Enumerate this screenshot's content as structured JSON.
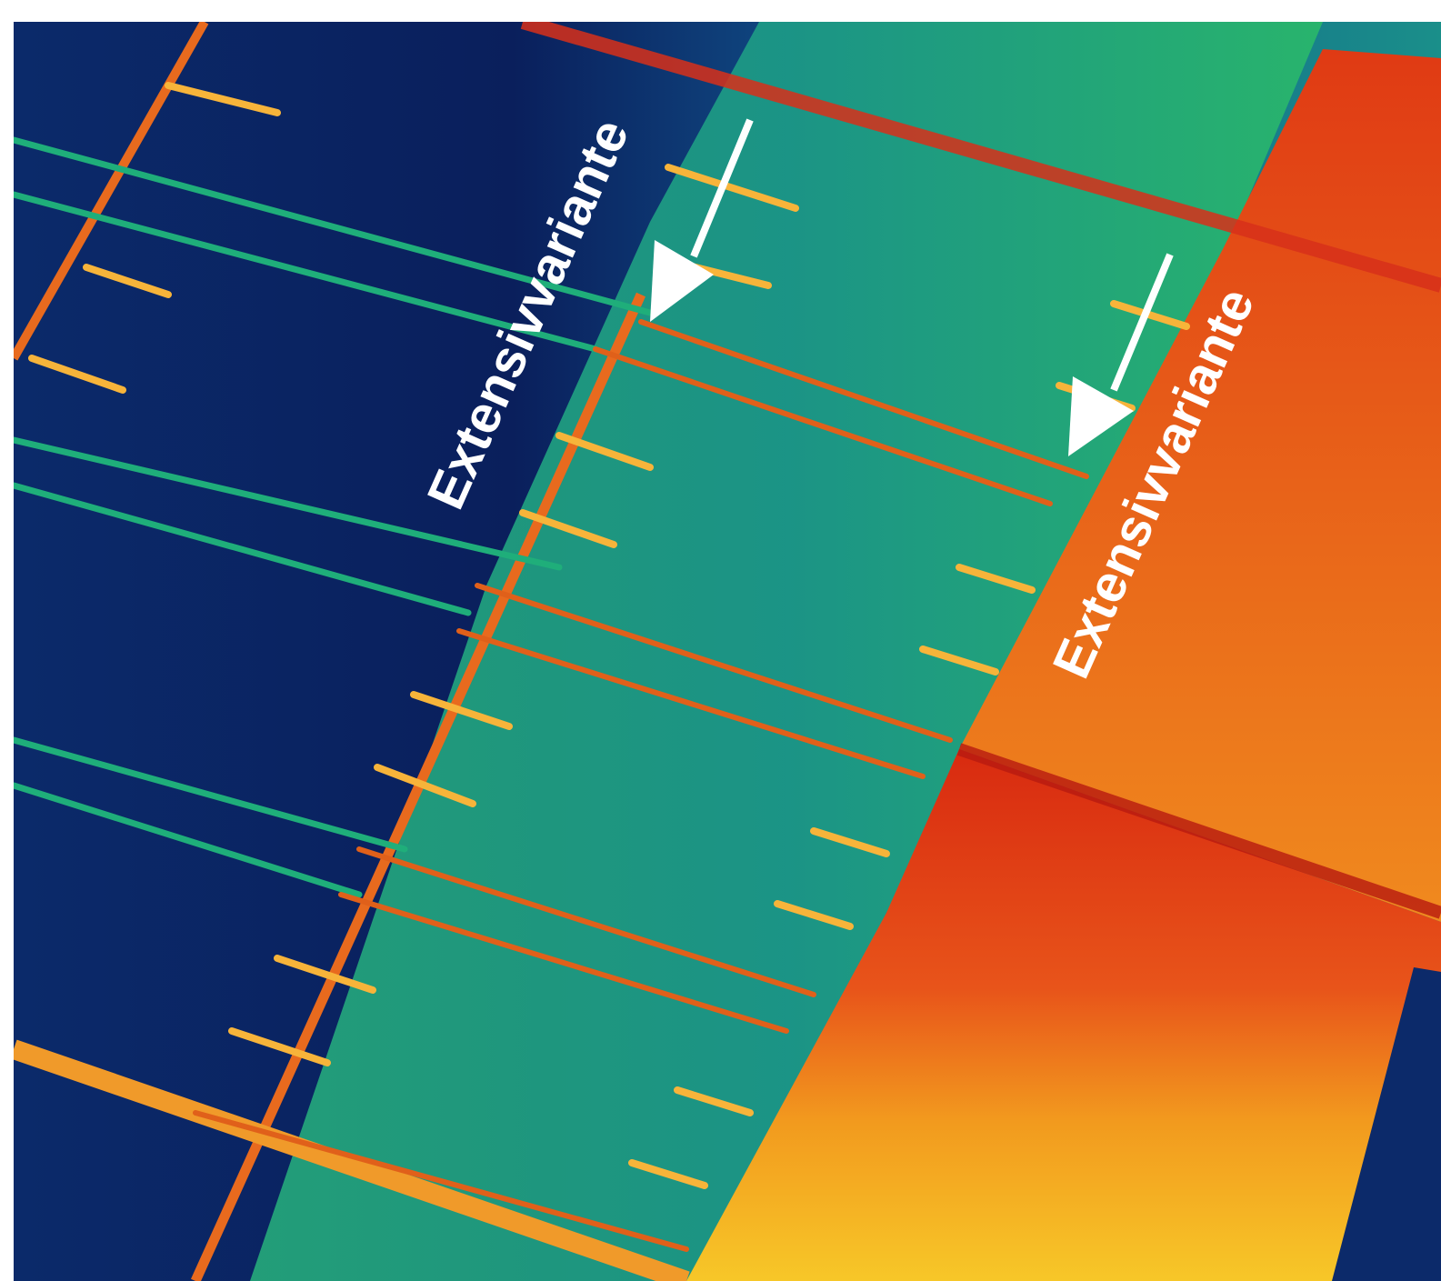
{
  "figure": {
    "type": "thermal aerial photograph",
    "palette": [
      "#0a1f5c",
      "#0d4a86",
      "#1a8f8a",
      "#2ab86a",
      "#f2a21c",
      "#e8541a",
      "#d82a10",
      "#f7c728"
    ]
  },
  "annotations": [
    {
      "label": "Extensivvariante",
      "arrow": "down-left-arrow"
    },
    {
      "label": "Extensivvariante",
      "arrow": "down-left-arrow"
    }
  ]
}
